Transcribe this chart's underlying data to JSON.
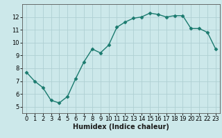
{
  "x": [
    0,
    1,
    2,
    3,
    4,
    5,
    6,
    7,
    8,
    9,
    10,
    11,
    12,
    13,
    14,
    15,
    16,
    17,
    18,
    19,
    20,
    21,
    22,
    23
  ],
  "y": [
    7.7,
    7.0,
    6.5,
    5.5,
    5.3,
    5.8,
    7.2,
    8.5,
    9.5,
    9.2,
    9.8,
    11.2,
    11.6,
    11.9,
    12.0,
    12.3,
    12.2,
    12.0,
    12.1,
    12.1,
    11.1,
    11.1,
    10.8,
    9.5
  ],
  "xlabel": "Humidex (Indice chaleur)",
  "line_color": "#1a7a6e",
  "marker_color": "#1a7a6e",
  "bg_color": "#cce8ea",
  "grid_color": "#afd0d3",
  "axis_color": "#555555",
  "ylim": [
    4.5,
    13.0
  ],
  "xlim": [
    -0.5,
    23.5
  ],
  "yticks": [
    5,
    6,
    7,
    8,
    9,
    10,
    11,
    12
  ],
  "xticks": [
    0,
    1,
    2,
    3,
    4,
    5,
    6,
    7,
    8,
    9,
    10,
    11,
    12,
    13,
    14,
    15,
    16,
    17,
    18,
    19,
    20,
    21,
    22,
    23
  ],
  "tick_fontsize": 6.0,
  "xlabel_fontsize": 7.0,
  "marker_size": 2.5,
  "line_width": 1.0
}
